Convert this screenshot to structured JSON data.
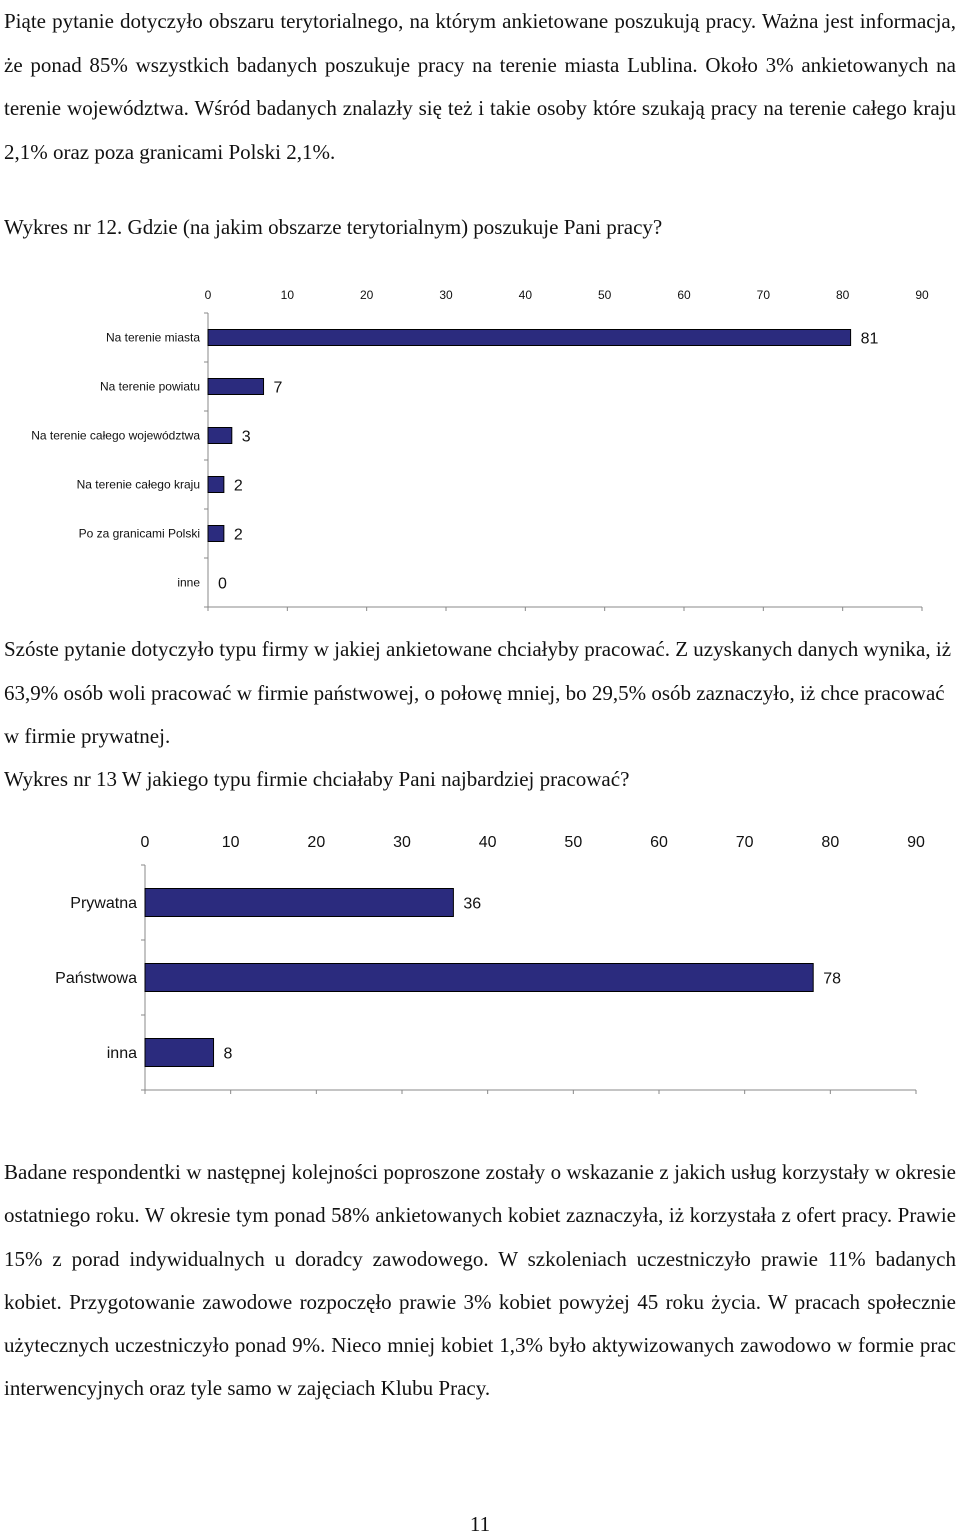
{
  "paragraph_1": "Piąte pytanie dotyczyło obszaru  terytorialnego, na którym ankietowane  poszukują pracy. Ważna jest informacja, że ponad 85% wszystkich badanych poszukuje pracy na terenie miasta Lublina. Około 3% ankietowanych na terenie województwa. Wśród badanych znalazły się też i takie osoby które szukają pracy na terenie całego kraju 2,1% oraz poza granicami Polski 2,1%.",
  "caption_1": "Wykres nr 12. Gdzie (na jakim obszarze terytorialnym) poszukuje Pani pracy?",
  "paragraph_2": "Szóste pytanie dotyczyło typu firmy w jakiej ankietowane chciałyby pracować. Z uzyskanych danych wynika, iż 63,9% osób woli pracować w firmie państwowej, o połowę mniej, bo 29,5% osób zaznaczyło, iż chce pracować w firmie prywatnej.",
  "caption_2": "Wykres nr 13 W jakiego typu firmie chciałaby Pani najbardziej pracować?",
  "paragraph_3": "Badane respondentki w następnej kolejności poproszone zostały o wskazanie z jakich usług korzystały w okresie ostatniego roku. W okresie tym ponad 58% ankietowanych kobiet zaznaczyła, iż korzystała z ofert pracy. Prawie 15% z porad indywidualnych u doradcy zawodowego. W szkoleniach uczestniczyło prawie 11% badanych kobiet. Przygotowanie zawodowe rozpoczęło prawie 3% kobiet powyżej 45 roku życia. W pracach społecznie użytecznych uczestniczyło ponad 9%. Nieco mniej kobiet 1,3% było aktywizowanych zawodowo w formie prac interwencyjnych oraz tyle samo w zajęciach Klubu Pracy.",
  "page_number": "11",
  "colors": {
    "bar_fill": "#2b2b7e",
    "bar_stroke": "#000000",
    "axis": "#888888"
  },
  "chart_data": [
    {
      "type": "bar",
      "orientation": "horizontal",
      "title": "",
      "xlabel": "",
      "ylabel": "",
      "xlim": [
        0,
        90
      ],
      "ticks": [
        "0",
        "10",
        "20",
        "30",
        "40",
        "50",
        "60",
        "70",
        "80",
        "90"
      ],
      "categories": [
        "Na terenie miasta",
        "Na terenie powiatu",
        "Na terenie całego województwa",
        "Na terenie całego kraju",
        "Po za granicami Polski",
        "inne"
      ],
      "values": [
        81,
        7,
        3,
        2,
        2,
        0
      ],
      "value_labels": [
        "81",
        "7",
        "3",
        "2",
        "2",
        "0"
      ],
      "grid": false,
      "tick_position": "top"
    },
    {
      "type": "bar",
      "orientation": "horizontal",
      "title": "",
      "xlabel": "",
      "ylabel": "",
      "xlim": [
        0,
        90
      ],
      "ticks": [
        "0",
        "10",
        "20",
        "30",
        "40",
        "50",
        "60",
        "70",
        "80",
        "90"
      ],
      "categories": [
        "Prywatna",
        "Państwowa",
        "inna"
      ],
      "values": [
        36,
        78,
        8
      ],
      "value_labels": [
        "36",
        "78",
        "8"
      ],
      "grid": false,
      "tick_position": "top"
    }
  ]
}
